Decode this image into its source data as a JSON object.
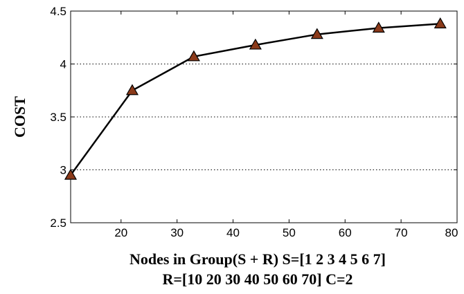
{
  "chart_data": {
    "type": "line",
    "title": "",
    "xlabel_line1": "Nodes in Group(S + R) S=[1 2 3 4 5 6 7]",
    "xlabel_line2": "R=[10 20 30 40 50 60 70] C=2",
    "ylabel": "COST",
    "xlim": [
      11,
      80
    ],
    "ylim": [
      2.5,
      4.5
    ],
    "x_ticks": [
      20,
      30,
      40,
      50,
      60,
      70,
      80
    ],
    "y_ticks": [
      2.5,
      3,
      3.5,
      4,
      4.5
    ],
    "y_tick_labels": [
      "2.5",
      "3",
      "3.5",
      "4",
      "4.5"
    ],
    "grid": "horizontal dotted",
    "series": [
      {
        "x": [
          11,
          22,
          33,
          44,
          55,
          66,
          77
        ],
        "values": [
          2.95,
          3.75,
          4.07,
          4.18,
          4.28,
          4.34,
          4.38
        ],
        "marker": "triangle",
        "marker_color": "#8b3a1a",
        "line_color": "#000000"
      }
    ]
  }
}
